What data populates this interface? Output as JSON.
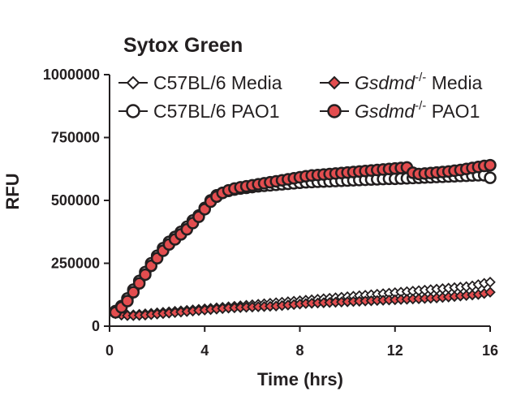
{
  "chart_data": {
    "type": "line",
    "title": "Sytox Green",
    "xlabel": "Time (hrs)",
    "ylabel": "RFU",
    "xlim": [
      0,
      16
    ],
    "ylim": [
      0,
      1000000
    ],
    "xticks": [
      0,
      4,
      8,
      12,
      16
    ],
    "xtick_labels": [
      "0",
      "4",
      "8",
      "12",
      "16"
    ],
    "yticks": [
      0,
      250000,
      500000,
      750000,
      1000000
    ],
    "ytick_labels": [
      "0",
      "250000",
      "500000",
      "750000",
      "1000000"
    ],
    "grid": false,
    "legend_position": "top",
    "x": [
      0.25,
      0.5,
      0.75,
      1,
      1.25,
      1.5,
      1.75,
      2,
      2.25,
      2.5,
      2.75,
      3,
      3.25,
      3.5,
      3.75,
      4,
      4.25,
      4.5,
      4.75,
      5,
      5.25,
      5.5,
      5.75,
      6,
      6.25,
      6.5,
      6.75,
      7,
      7.25,
      7.5,
      7.75,
      8,
      8.25,
      8.5,
      8.75,
      9,
      9.25,
      9.5,
      9.75,
      10,
      10.25,
      10.5,
      10.75,
      11,
      11.25,
      11.5,
      11.75,
      12,
      12.25,
      12.5,
      12.75,
      13,
      13.25,
      13.5,
      13.75,
      14,
      14.25,
      14.5,
      14.75,
      15,
      15.25,
      15.5,
      15.75,
      16
    ],
    "series": [
      {
        "name_main": "C57BL/6 Media",
        "name_italic": "",
        "name_super": "",
        "marker": "diamond",
        "fill": "#ffffff",
        "stroke": "#231f20",
        "values": [
          50000,
          45000,
          44000,
          45000,
          47000,
          49000,
          51000,
          53000,
          55000,
          57000,
          59000,
          61000,
          63000,
          65000,
          67000,
          69000,
          71000,
          73000,
          75000,
          77000,
          79000,
          81000,
          83000,
          85000,
          87000,
          89000,
          91000,
          93000,
          95000,
          97000,
          99000,
          101000,
          103000,
          105000,
          107000,
          109000,
          111000,
          113000,
          115000,
          117000,
          119000,
          121000,
          123000,
          125000,
          127000,
          129000,
          131000,
          133000,
          135000,
          137000,
          139000,
          141000,
          143000,
          145000,
          147000,
          149000,
          151000,
          153000,
          155000,
          157000,
          160000,
          165000,
          170000,
          175000
        ]
      },
      {
        "name_main": "C57BL/6 PAO1",
        "name_italic": "",
        "name_super": "",
        "marker": "circle",
        "fill": "#ffffff",
        "stroke": "#231f20",
        "values": [
          60000,
          80000,
          110000,
          145000,
          180000,
          215000,
          250000,
          280000,
          310000,
          335000,
          355000,
          375000,
          395000,
          420000,
          440000,
          470000,
          500000,
          520000,
          530000,
          538000,
          543000,
          547000,
          550000,
          553000,
          556000,
          558000,
          560000,
          562000,
          564000,
          566000,
          568000,
          570000,
          572000,
          573000,
          574000,
          575000,
          576000,
          577000,
          578000,
          579000,
          580000,
          581000,
          582000,
          583000,
          584000,
          585000,
          586000,
          586000,
          587000,
          588000,
          589000,
          590000,
          591000,
          592000,
          593000,
          594000,
          595000,
          596000,
          597000,
          598000,
          599000,
          600000,
          600000,
          590000
        ]
      },
      {
        "name_main": " Media",
        "name_italic": "Gsdmd",
        "name_super": "-/-",
        "marker": "diamond",
        "fill": "#e34d4f",
        "stroke": "#231f20",
        "values": [
          50000,
          44000,
          42000,
          42000,
          43000,
          44000,
          46000,
          48000,
          50000,
          52000,
          54000,
          56000,
          58000,
          60000,
          62000,
          64000,
          66000,
          68000,
          70000,
          72000,
          73000,
          74000,
          75000,
          76000,
          77000,
          78000,
          79000,
          80000,
          82000,
          84000,
          86000,
          88000,
          90000,
          91000,
          92000,
          93000,
          94000,
          95000,
          96000,
          97000,
          98000,
          99000,
          100000,
          101000,
          102000,
          103000,
          104000,
          105000,
          106000,
          107000,
          108000,
          109000,
          110000,
          111000,
          112000,
          114000,
          116000,
          118000,
          120000,
          122000,
          124000,
          126000,
          130000,
          135000
        ]
      },
      {
        "name_main": " PAO1",
        "name_italic": "Gsdmd",
        "name_super": "-/-",
        "marker": "circle",
        "fill": "#e34d4f",
        "stroke": "#231f20",
        "values": [
          55000,
          75000,
          100000,
          135000,
          170000,
          205000,
          240000,
          270000,
          300000,
          325000,
          345000,
          365000,
          385000,
          410000,
          435000,
          465000,
          495000,
          515000,
          530000,
          540000,
          547000,
          552000,
          556000,
          560000,
          564000,
          568000,
          572000,
          576000,
          580000,
          584000,
          588000,
          592000,
          596000,
          599000,
          601000,
          603000,
          605000,
          607000,
          609000,
          611000,
          613000,
          615000,
          617000,
          619000,
          621000,
          623000,
          625000,
          627000,
          629000,
          631000,
          610000,
          605000,
          607000,
          609000,
          611000,
          613000,
          615000,
          618000,
          621000,
          625000,
          629000,
          633000,
          637000,
          640000
        ]
      }
    ]
  }
}
